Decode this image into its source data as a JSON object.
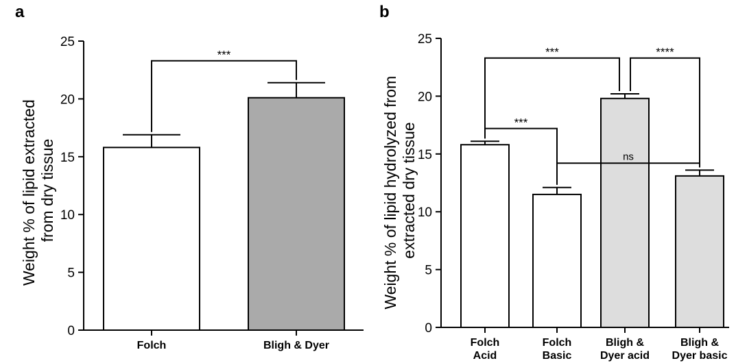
{
  "chart_data": [
    {
      "panel": "a",
      "type": "bar",
      "categories": [
        "Folch",
        "Bligh & Dyer"
      ],
      "values": [
        15.8,
        20.1
      ],
      "errors": [
        1.1,
        1.3
      ],
      "bar_colors": [
        "#ffffff",
        "#aaaaaa"
      ],
      "ylabel": "Weight % of lipid extracted from dry tissue",
      "ylabel_lines": [
        "Weight % of lipid extracted",
        "from dry tissue"
      ],
      "ylim": [
        0,
        25
      ],
      "yticks": [
        0,
        5,
        10,
        15,
        20,
        25
      ],
      "brackets": [
        {
          "from": 0,
          "to": 1,
          "label": "***",
          "y": 23.3
        }
      ]
    },
    {
      "panel": "b",
      "type": "bar",
      "categories": [
        "Folch Acid",
        "Folch Basic",
        "Bligh & Dyer acid",
        "Bligh & Dyer basic"
      ],
      "category_lines": [
        [
          "Folch",
          "Acid"
        ],
        [
          "Folch",
          "Basic"
        ],
        [
          "Bligh &",
          "Dyer acid"
        ],
        [
          "Bligh &",
          "Dyer basic"
        ]
      ],
      "values": [
        15.8,
        11.5,
        19.8,
        13.1
      ],
      "errors": [
        0.3,
        0.6,
        0.4,
        0.5
      ],
      "bar_colors": [
        "#ffffff",
        "#ffffff",
        "#dddddd",
        "#dddddd"
      ],
      "ylabel": "Weight % of lipid hydrolyzed from extracted dry tissue",
      "ylabel_lines": [
        "Weight % of lipid hydrolyzed from",
        "extracted dry tissue"
      ],
      "ylim": [
        0,
        25
      ],
      "yticks": [
        0,
        5,
        10,
        15,
        20,
        25
      ],
      "brackets": [
        {
          "from": 0,
          "to": 2,
          "label": "***",
          "y": 23.3
        },
        {
          "from": 2,
          "to": 3,
          "label": "****",
          "y": 23.3
        },
        {
          "from": 0,
          "to": 1,
          "label": "***",
          "y": 17.2
        },
        {
          "from": 1,
          "to": 3,
          "label": "ns",
          "y": 14.2
        }
      ]
    }
  ]
}
